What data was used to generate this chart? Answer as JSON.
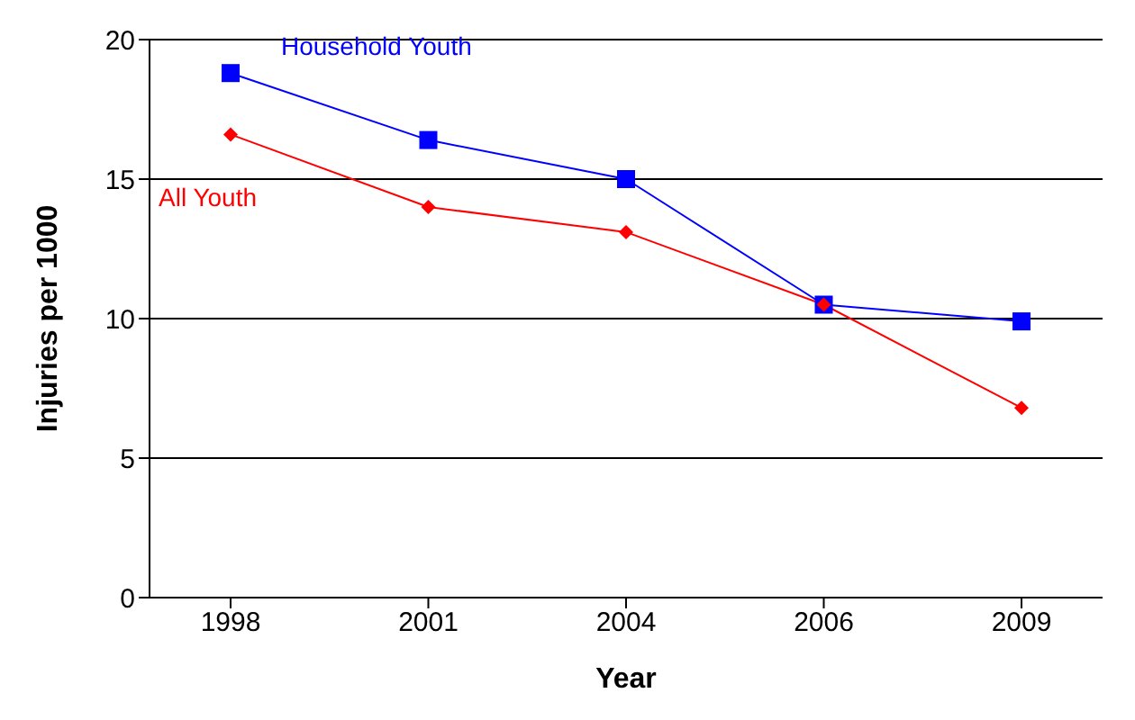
{
  "chart_data": {
    "type": "line",
    "xlabel": "Year",
    "ylabel": "Injuries per 1000",
    "categories": [
      "1998",
      "2001",
      "2004",
      "2006",
      "2009"
    ],
    "series": [
      {
        "name": "Household Youth",
        "color": "#0000ff",
        "marker": "square",
        "values": [
          18.8,
          16.4,
          15.0,
          10.5,
          9.9
        ]
      },
      {
        "name": "All Youth",
        "color": "#ff0000",
        "marker": "diamond",
        "values": [
          16.6,
          14.0,
          13.1,
          10.5,
          6.8
        ]
      }
    ],
    "ylim": [
      0,
      20
    ],
    "yticks": [
      0,
      5,
      10,
      15,
      20
    ],
    "grid": "y",
    "legend": false
  }
}
